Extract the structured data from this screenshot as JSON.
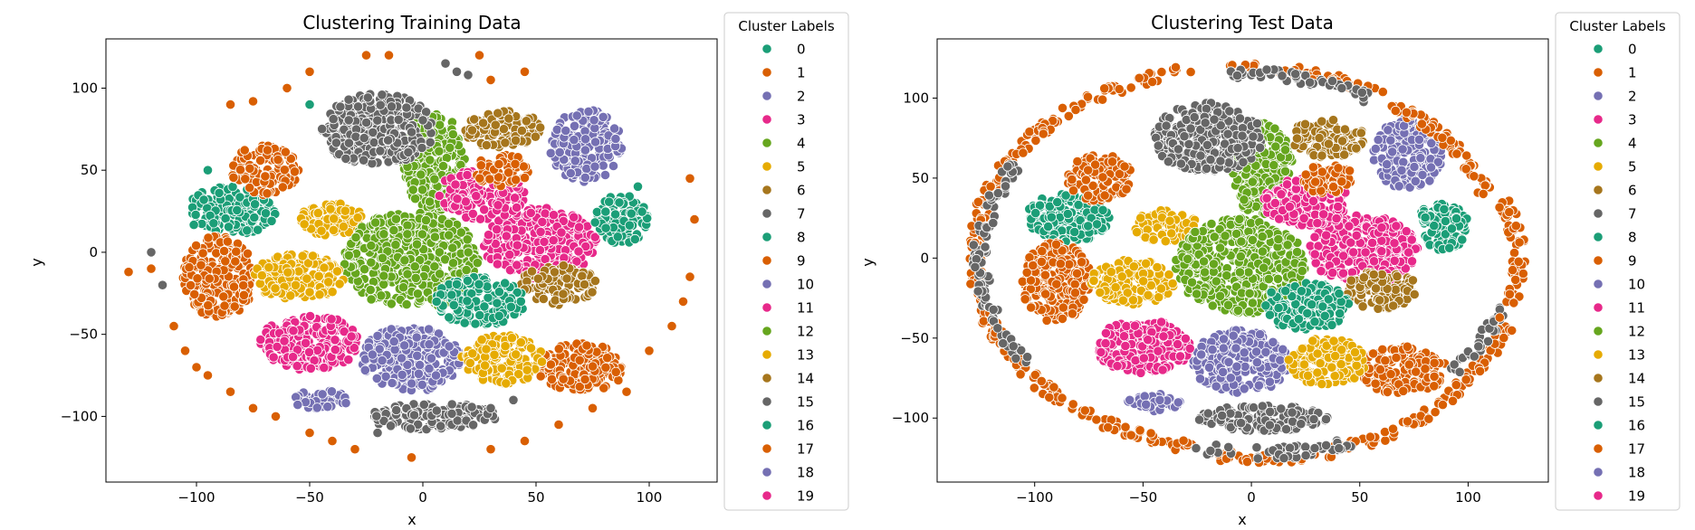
{
  "palette": [
    "#1b9e77",
    "#d95f02",
    "#7570b3",
    "#e7298a",
    "#66a61e",
    "#e6ab02",
    "#a6761d",
    "#666666",
    "#1b9e77",
    "#d95f02",
    "#7570b3",
    "#e7298a",
    "#66a61e",
    "#e6ab02",
    "#a6761d",
    "#666666",
    "#1b9e77",
    "#d95f02",
    "#7570b3",
    "#e7298a"
  ],
  "chart_data": [
    {
      "type": "scatter",
      "title": "Clustering Training Data",
      "xlabel": "x",
      "ylabel": "y",
      "xlim": [
        -140,
        130
      ],
      "ylim": [
        -140,
        130
      ],
      "xticks": [
        -100,
        -50,
        0,
        50,
        100
      ],
      "yticks": [
        -100,
        -50,
        0,
        50,
        100
      ],
      "grid": false,
      "legend": {
        "title": "Cluster Labels",
        "placement": "outside-right",
        "labels": [
          "0",
          "1",
          "2",
          "3",
          "4",
          "5",
          "6",
          "7",
          "8",
          "9",
          "10",
          "11",
          "12",
          "13",
          "14",
          "15",
          "16",
          "17",
          "18",
          "19"
        ]
      },
      "clusters": [
        {
          "label": "0",
          "cx": -85,
          "cy": 25,
          "rx": 20,
          "ry": 15
        },
        {
          "label": "1",
          "cx": -70,
          "cy": 50,
          "rx": 15,
          "ry": 15
        },
        {
          "label": "2",
          "cx": 72,
          "cy": 65,
          "rx": 16,
          "ry": 22
        },
        {
          "label": "3",
          "cx": 52,
          "cy": 5,
          "rx": 25,
          "ry": 22
        },
        {
          "label": "4",
          "cx": 5,
          "cy": 55,
          "rx": 14,
          "ry": 30
        },
        {
          "label": "5",
          "cx": -40,
          "cy": 20,
          "rx": 15,
          "ry": 10
        },
        {
          "label": "6",
          "cx": 35,
          "cy": 75,
          "rx": 17,
          "ry": 12
        },
        {
          "label": "7",
          "cx": -20,
          "cy": 75,
          "rx": 25,
          "ry": 22
        },
        {
          "label": "8",
          "cx": 88,
          "cy": 20,
          "rx": 12,
          "ry": 15
        },
        {
          "label": "9",
          "cx": -90,
          "cy": -15,
          "rx": 16,
          "ry": 25
        },
        {
          "label": "10",
          "cx": -5,
          "cy": -65,
          "rx": 22,
          "ry": 20
        },
        {
          "label": "11",
          "cx": -50,
          "cy": -55,
          "rx": 22,
          "ry": 17
        },
        {
          "label": "12",
          "cx": -5,
          "cy": -5,
          "rx": 30,
          "ry": 30
        },
        {
          "label": "13",
          "cx": -55,
          "cy": -15,
          "rx": 20,
          "ry": 14
        },
        {
          "label": "14",
          "cx": 60,
          "cy": -20,
          "rx": 17,
          "ry": 12
        },
        {
          "label": "15",
          "cx": 5,
          "cy": -100,
          "rx": 30,
          "ry": 8
        },
        {
          "label": "16",
          "cx": 25,
          "cy": -30,
          "rx": 20,
          "ry": 15
        },
        {
          "label": "17",
          "cx": 70,
          "cy": -70,
          "rx": 20,
          "ry": 15
        },
        {
          "label": "18",
          "cx": -45,
          "cy": -90,
          "rx": 12,
          "ry": 6
        },
        {
          "label": "19",
          "cx": 25,
          "cy": 35,
          "rx": 20,
          "ry": 15
        },
        {
          "label": "13",
          "cx": 35,
          "cy": -65,
          "rx": 18,
          "ry": 15
        },
        {
          "label": "1",
          "cx": 35,
          "cy": 50,
          "rx": 12,
          "ry": 10
        }
      ],
      "points": [
        {
          "label": "1",
          "x": -130,
          "y": -12
        },
        {
          "label": "1",
          "x": -120,
          "y": -10
        },
        {
          "label": "1",
          "x": -110,
          "y": -45
        },
        {
          "label": "1",
          "x": -105,
          "y": -60
        },
        {
          "label": "1",
          "x": -100,
          "y": -70
        },
        {
          "label": "1",
          "x": -95,
          "y": -75
        },
        {
          "label": "1",
          "x": -85,
          "y": -85
        },
        {
          "label": "1",
          "x": -75,
          "y": -95
        },
        {
          "label": "1",
          "x": -65,
          "y": -100
        },
        {
          "label": "1",
          "x": -50,
          "y": -110
        },
        {
          "label": "1",
          "x": -40,
          "y": -115
        },
        {
          "label": "1",
          "x": -30,
          "y": -120
        },
        {
          "label": "1",
          "x": -5,
          "y": -125
        },
        {
          "label": "1",
          "x": 30,
          "y": -120
        },
        {
          "label": "1",
          "x": 45,
          "y": -115
        },
        {
          "label": "1",
          "x": 60,
          "y": -105
        },
        {
          "label": "1",
          "x": 75,
          "y": -95
        },
        {
          "label": "1",
          "x": 90,
          "y": -85
        },
        {
          "label": "1",
          "x": 100,
          "y": -60
        },
        {
          "label": "1",
          "x": 110,
          "y": -45
        },
        {
          "label": "1",
          "x": 115,
          "y": -30
        },
        {
          "label": "1",
          "x": 118,
          "y": -15
        },
        {
          "label": "1",
          "x": 120,
          "y": 20
        },
        {
          "label": "1",
          "x": 118,
          "y": 45
        },
        {
          "label": "1",
          "x": -85,
          "y": 90
        },
        {
          "label": "1",
          "x": -75,
          "y": 92
        },
        {
          "label": "1",
          "x": -60,
          "y": 100
        },
        {
          "label": "1",
          "x": -50,
          "y": 110
        },
        {
          "label": "1",
          "x": -25,
          "y": 120
        },
        {
          "label": "1",
          "x": -15,
          "y": 120
        },
        {
          "label": "1",
          "x": 25,
          "y": 120
        },
        {
          "label": "1",
          "x": 45,
          "y": 110
        },
        {
          "label": "1",
          "x": 30,
          "y": 105
        },
        {
          "label": "7",
          "x": -120,
          "y": 0
        },
        {
          "label": "7",
          "x": -115,
          "y": -20
        },
        {
          "label": "7",
          "x": 15,
          "y": 110
        },
        {
          "label": "7",
          "x": 10,
          "y": 115
        },
        {
          "label": "7",
          "x": 20,
          "y": 108
        },
        {
          "label": "7",
          "x": -20,
          "y": -110
        },
        {
          "label": "7",
          "x": 40,
          "y": -90
        },
        {
          "label": "7",
          "x": 30,
          "y": -95
        },
        {
          "label": "8",
          "x": -95,
          "y": 50
        },
        {
          "label": "8",
          "x": -50,
          "y": 90
        },
        {
          "label": "8",
          "x": 95,
          "y": 40
        }
      ]
    },
    {
      "type": "scatter",
      "title": "Clustering Test Data",
      "xlabel": "x",
      "ylabel": "y",
      "xlim": [
        -145,
        137
      ],
      "ylim": [
        -140,
        137
      ],
      "xticks": [
        -100,
        -50,
        0,
        50,
        100
      ],
      "yticks": [
        -100,
        -50,
        0,
        50,
        100
      ],
      "grid": false,
      "legend": {
        "title": "Cluster Labels",
        "placement": "outside-right",
        "labels": [
          "0",
          "1",
          "2",
          "3",
          "4",
          "5",
          "6",
          "7",
          "8",
          "9",
          "10",
          "11",
          "12",
          "13",
          "14",
          "15",
          "16",
          "17",
          "18",
          "19"
        ]
      },
      "clusters": [
        {
          "label": "0",
          "cx": -85,
          "cy": 25,
          "rx": 20,
          "ry": 15
        },
        {
          "label": "1",
          "cx": -70,
          "cy": 50,
          "rx": 15,
          "ry": 15
        },
        {
          "label": "2",
          "cx": 72,
          "cy": 65,
          "rx": 16,
          "ry": 22
        },
        {
          "label": "3",
          "cx": 52,
          "cy": 5,
          "rx": 25,
          "ry": 22
        },
        {
          "label": "4",
          "cx": 5,
          "cy": 55,
          "rx": 14,
          "ry": 30
        },
        {
          "label": "5",
          "cx": -40,
          "cy": 20,
          "rx": 15,
          "ry": 10
        },
        {
          "label": "6",
          "cx": 35,
          "cy": 75,
          "rx": 17,
          "ry": 12
        },
        {
          "label": "7",
          "cx": -20,
          "cy": 75,
          "rx": 25,
          "ry": 22
        },
        {
          "label": "8",
          "cx": 88,
          "cy": 20,
          "rx": 12,
          "ry": 15
        },
        {
          "label": "9",
          "cx": -90,
          "cy": -15,
          "rx": 16,
          "ry": 25
        },
        {
          "label": "10",
          "cx": -5,
          "cy": -65,
          "rx": 22,
          "ry": 20
        },
        {
          "label": "11",
          "cx": -50,
          "cy": -55,
          "rx": 22,
          "ry": 17
        },
        {
          "label": "12",
          "cx": -5,
          "cy": -5,
          "rx": 30,
          "ry": 30
        },
        {
          "label": "13",
          "cx": -55,
          "cy": -15,
          "rx": 20,
          "ry": 14
        },
        {
          "label": "14",
          "cx": 60,
          "cy": -20,
          "rx": 17,
          "ry": 12
        },
        {
          "label": "15",
          "cx": 5,
          "cy": -100,
          "rx": 30,
          "ry": 8
        },
        {
          "label": "16",
          "cx": 25,
          "cy": -30,
          "rx": 20,
          "ry": 15
        },
        {
          "label": "17",
          "cx": 70,
          "cy": -70,
          "rx": 20,
          "ry": 15
        },
        {
          "label": "18",
          "cx": -45,
          "cy": -90,
          "rx": 12,
          "ry": 6
        },
        {
          "label": "19",
          "cx": 25,
          "cy": 35,
          "rx": 20,
          "ry": 15
        },
        {
          "label": "13",
          "cx": 35,
          "cy": -65,
          "rx": 18,
          "ry": 15
        },
        {
          "label": "1",
          "cx": 35,
          "cy": 50,
          "rx": 12,
          "ry": 10
        }
      ],
      "rings": [
        {
          "label": "1",
          "cx": -5,
          "cy": 0,
          "rx": 123,
          "ry": 120,
          "from": 100,
          "to": 260
        },
        {
          "label": "7",
          "cx": -5,
          "cy": 0,
          "rx": 120,
          "ry": 116,
          "from": 150,
          "to": 215
        },
        {
          "label": "1",
          "cx": 0,
          "cy": 0,
          "rx": 115,
          "ry": 118,
          "from": 20,
          "to": 95
        },
        {
          "label": "7",
          "cx": 0,
          "cy": 0,
          "rx": 110,
          "ry": 115,
          "from": 60,
          "to": 95
        },
        {
          "label": "1",
          "cx": 5,
          "cy": 0,
          "rx": 120,
          "ry": 125,
          "from": 260,
          "to": 340
        },
        {
          "label": "7",
          "cx": 5,
          "cy": 0,
          "rx": 118,
          "ry": 122,
          "from": 255,
          "to": 290
        },
        {
          "label": "7",
          "cx": 5,
          "cy": 0,
          "rx": 115,
          "ry": 110,
          "from": 320,
          "to": 345
        },
        {
          "label": "1",
          "cx": 5,
          "cy": 0,
          "rx": 118,
          "ry": 110,
          "from": 340,
          "to": 380
        }
      ],
      "points": []
    }
  ]
}
